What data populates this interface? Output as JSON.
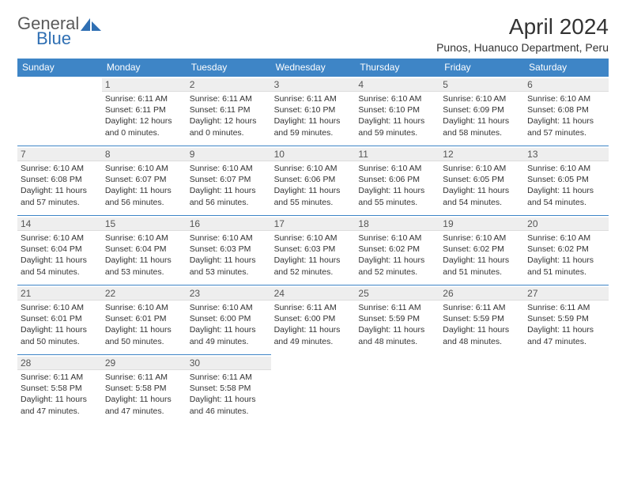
{
  "colors": {
    "header_bg": "#3e85c6",
    "header_text": "#ffffff",
    "daynum_bg": "#eeeeee",
    "border": "#3e85c6",
    "body_text": "#333333",
    "logo_gray": "#5a5a5a",
    "logo_blue": "#2f6fb3",
    "page_bg": "#ffffff"
  },
  "typography": {
    "title_fontsize": 28,
    "subtitle_fontsize": 14,
    "dayhead_fontsize": 12,
    "daynum_fontsize": 12,
    "info_fontsize": 10.5,
    "logo_fontsize": 22
  },
  "logo": {
    "line1": "General",
    "line2": "Blue"
  },
  "title": "April 2024",
  "subtitle": "Punos, Huanuco Department, Peru",
  "weekdays": [
    "Sunday",
    "Monday",
    "Tuesday",
    "Wednesday",
    "Thursday",
    "Friday",
    "Saturday"
  ],
  "weeks": [
    [
      {
        "day": null
      },
      {
        "day": "1",
        "sunrise": "Sunrise: 6:11 AM",
        "sunset": "Sunset: 6:11 PM",
        "daylight": "Daylight: 12 hours and 0 minutes."
      },
      {
        "day": "2",
        "sunrise": "Sunrise: 6:11 AM",
        "sunset": "Sunset: 6:11 PM",
        "daylight": "Daylight: 12 hours and 0 minutes."
      },
      {
        "day": "3",
        "sunrise": "Sunrise: 6:11 AM",
        "sunset": "Sunset: 6:10 PM",
        "daylight": "Daylight: 11 hours and 59 minutes."
      },
      {
        "day": "4",
        "sunrise": "Sunrise: 6:10 AM",
        "sunset": "Sunset: 6:10 PM",
        "daylight": "Daylight: 11 hours and 59 minutes."
      },
      {
        "day": "5",
        "sunrise": "Sunrise: 6:10 AM",
        "sunset": "Sunset: 6:09 PM",
        "daylight": "Daylight: 11 hours and 58 minutes."
      },
      {
        "day": "6",
        "sunrise": "Sunrise: 6:10 AM",
        "sunset": "Sunset: 6:08 PM",
        "daylight": "Daylight: 11 hours and 57 minutes."
      }
    ],
    [
      {
        "day": "7",
        "sunrise": "Sunrise: 6:10 AM",
        "sunset": "Sunset: 6:08 PM",
        "daylight": "Daylight: 11 hours and 57 minutes."
      },
      {
        "day": "8",
        "sunrise": "Sunrise: 6:10 AM",
        "sunset": "Sunset: 6:07 PM",
        "daylight": "Daylight: 11 hours and 56 minutes."
      },
      {
        "day": "9",
        "sunrise": "Sunrise: 6:10 AM",
        "sunset": "Sunset: 6:07 PM",
        "daylight": "Daylight: 11 hours and 56 minutes."
      },
      {
        "day": "10",
        "sunrise": "Sunrise: 6:10 AM",
        "sunset": "Sunset: 6:06 PM",
        "daylight": "Daylight: 11 hours and 55 minutes."
      },
      {
        "day": "11",
        "sunrise": "Sunrise: 6:10 AM",
        "sunset": "Sunset: 6:06 PM",
        "daylight": "Daylight: 11 hours and 55 minutes."
      },
      {
        "day": "12",
        "sunrise": "Sunrise: 6:10 AM",
        "sunset": "Sunset: 6:05 PM",
        "daylight": "Daylight: 11 hours and 54 minutes."
      },
      {
        "day": "13",
        "sunrise": "Sunrise: 6:10 AM",
        "sunset": "Sunset: 6:05 PM",
        "daylight": "Daylight: 11 hours and 54 minutes."
      }
    ],
    [
      {
        "day": "14",
        "sunrise": "Sunrise: 6:10 AM",
        "sunset": "Sunset: 6:04 PM",
        "daylight": "Daylight: 11 hours and 54 minutes."
      },
      {
        "day": "15",
        "sunrise": "Sunrise: 6:10 AM",
        "sunset": "Sunset: 6:04 PM",
        "daylight": "Daylight: 11 hours and 53 minutes."
      },
      {
        "day": "16",
        "sunrise": "Sunrise: 6:10 AM",
        "sunset": "Sunset: 6:03 PM",
        "daylight": "Daylight: 11 hours and 53 minutes."
      },
      {
        "day": "17",
        "sunrise": "Sunrise: 6:10 AM",
        "sunset": "Sunset: 6:03 PM",
        "daylight": "Daylight: 11 hours and 52 minutes."
      },
      {
        "day": "18",
        "sunrise": "Sunrise: 6:10 AM",
        "sunset": "Sunset: 6:02 PM",
        "daylight": "Daylight: 11 hours and 52 minutes."
      },
      {
        "day": "19",
        "sunrise": "Sunrise: 6:10 AM",
        "sunset": "Sunset: 6:02 PM",
        "daylight": "Daylight: 11 hours and 51 minutes."
      },
      {
        "day": "20",
        "sunrise": "Sunrise: 6:10 AM",
        "sunset": "Sunset: 6:02 PM",
        "daylight": "Daylight: 11 hours and 51 minutes."
      }
    ],
    [
      {
        "day": "21",
        "sunrise": "Sunrise: 6:10 AM",
        "sunset": "Sunset: 6:01 PM",
        "daylight": "Daylight: 11 hours and 50 minutes."
      },
      {
        "day": "22",
        "sunrise": "Sunrise: 6:10 AM",
        "sunset": "Sunset: 6:01 PM",
        "daylight": "Daylight: 11 hours and 50 minutes."
      },
      {
        "day": "23",
        "sunrise": "Sunrise: 6:10 AM",
        "sunset": "Sunset: 6:00 PM",
        "daylight": "Daylight: 11 hours and 49 minutes."
      },
      {
        "day": "24",
        "sunrise": "Sunrise: 6:11 AM",
        "sunset": "Sunset: 6:00 PM",
        "daylight": "Daylight: 11 hours and 49 minutes."
      },
      {
        "day": "25",
        "sunrise": "Sunrise: 6:11 AM",
        "sunset": "Sunset: 5:59 PM",
        "daylight": "Daylight: 11 hours and 48 minutes."
      },
      {
        "day": "26",
        "sunrise": "Sunrise: 6:11 AM",
        "sunset": "Sunset: 5:59 PM",
        "daylight": "Daylight: 11 hours and 48 minutes."
      },
      {
        "day": "27",
        "sunrise": "Sunrise: 6:11 AM",
        "sunset": "Sunset: 5:59 PM",
        "daylight": "Daylight: 11 hours and 47 minutes."
      }
    ],
    [
      {
        "day": "28",
        "sunrise": "Sunrise: 6:11 AM",
        "sunset": "Sunset: 5:58 PM",
        "daylight": "Daylight: 11 hours and 47 minutes."
      },
      {
        "day": "29",
        "sunrise": "Sunrise: 6:11 AM",
        "sunset": "Sunset: 5:58 PM",
        "daylight": "Daylight: 11 hours and 47 minutes."
      },
      {
        "day": "30",
        "sunrise": "Sunrise: 6:11 AM",
        "sunset": "Sunset: 5:58 PM",
        "daylight": "Daylight: 11 hours and 46 minutes."
      },
      {
        "day": null
      },
      {
        "day": null
      },
      {
        "day": null
      },
      {
        "day": null
      }
    ]
  ]
}
